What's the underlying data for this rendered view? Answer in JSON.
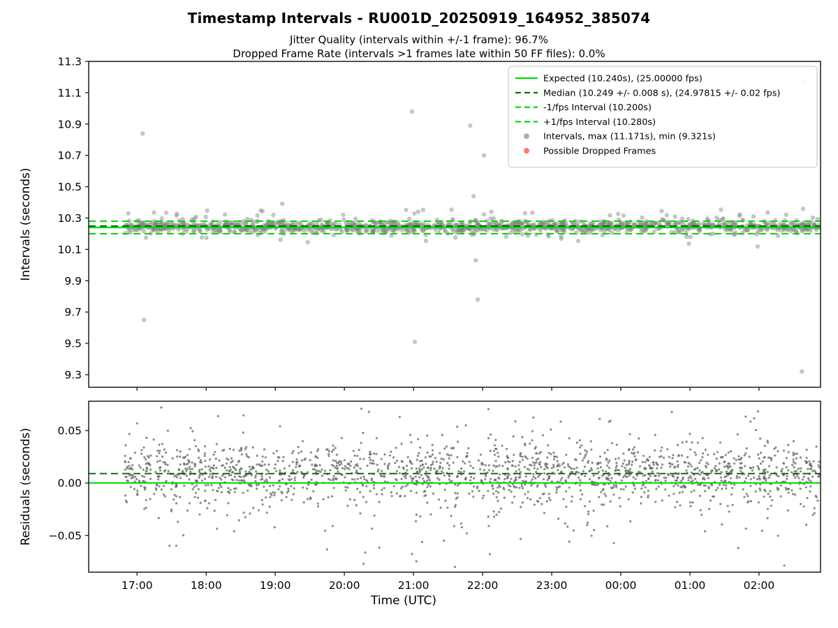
{
  "title": "Timestamp Intervals - RU001D_20250919_164952_385074",
  "subtitle_line1": "Jitter Quality (intervals within +/-1 frame): 96.7%",
  "subtitle_line2": "Dropped Frame Rate (intervals >1 frames late within 50 FF files): 0.0%",
  "chart_data": {
    "type": "scatter",
    "title": "Timestamp Intervals - RU001D_20250919_164952_385074",
    "x_axis": {
      "label": "Time (UTC)",
      "domain": [
        16.3,
        26.89
      ],
      "ticks": [
        17,
        18,
        19,
        20,
        21,
        22,
        23,
        24,
        25,
        26
      ],
      "tick_labels": [
        "17:00",
        "18:00",
        "19:00",
        "20:00",
        "21:00",
        "22:00",
        "23:00",
        "00:00",
        "01:00",
        "02:00"
      ]
    },
    "colors": {
      "expected_green": "#00DD00",
      "median_dark_green": "#006400",
      "interval_gray": "#808080",
      "residual_gray": "#666666",
      "dropped_red": "#FF3333",
      "spine": "#1a1a1a",
      "legend_border": "#cccccc"
    },
    "panels": [
      {
        "name": "intervals",
        "ylabel": "Intervals (seconds)",
        "ylim": [
          9.22,
          11.3
        ],
        "yticks": [
          9.3,
          9.5,
          9.7,
          9.9,
          10.1,
          10.3,
          10.5,
          10.7,
          10.9,
          11.1,
          11.3
        ],
        "ytick_labels": [
          "9.3",
          "9.5",
          "9.7",
          "9.9",
          "10.1",
          "10.3",
          "10.5",
          "10.7",
          "10.9",
          "11.1",
          "11.3"
        ],
        "show_x_labels": false,
        "lines": [
          {
            "name": "expected-line",
            "value": 10.24,
            "style": "solid",
            "color": "#00DD00",
            "width": 2.2
          },
          {
            "name": "median-line",
            "value": 10.249,
            "style": "dashed",
            "color": "#006400",
            "width": 2.0
          },
          {
            "name": "minus-1fps-line",
            "value": 10.2,
            "style": "dashed",
            "color": "#00DD00",
            "width": 2.0
          },
          {
            "name": "plus-1fps-line",
            "value": 10.28,
            "style": "dashed",
            "color": "#00DD00",
            "width": 2.0
          }
        ],
        "scatter": {
          "name": "interval-points",
          "color": "#808080",
          "opacity": 0.45,
          "radius": 3.2,
          "cluster": {
            "count": 1250,
            "t_range": [
              16.82,
              26.89
            ],
            "mean": 10.247,
            "std_core": 0.017,
            "std_wide": 0.05,
            "wide_fraction": 0.22,
            "clip": [
              10.11,
              10.4
            ],
            "seed": 42
          },
          "outliers": [
            [
              17.08,
              10.84
            ],
            [
              17.1,
              9.65
            ],
            [
              20.98,
              10.98
            ],
            [
              21.02,
              9.51
            ],
            [
              21.82,
              10.89
            ],
            [
              21.87,
              10.44
            ],
            [
              21.9,
              10.03
            ],
            [
              21.93,
              9.78
            ],
            [
              22.02,
              10.7
            ],
            [
              26.66,
              11.171
            ],
            [
              26.62,
              9.321
            ]
          ],
          "max_value": 11.171,
          "min_value": 9.321
        },
        "dropped_frames": {
          "name": "dropped-frame-points",
          "color": "#FF3333",
          "opacity": 0.55,
          "radius": 3.2,
          "points": []
        }
      },
      {
        "name": "residuals",
        "ylabel": "Residuals (seconds)",
        "ylim": [
          -0.085,
          0.078
        ],
        "yticks": [
          -0.05,
          0.0,
          0.05
        ],
        "ytick_labels": [
          "−0.05",
          "0.00",
          "0.05"
        ],
        "show_x_labels": true,
        "lines": [
          {
            "name": "median-residual-line",
            "value": 0.009,
            "style": "dashed",
            "color": "#006400",
            "width": 1.8
          },
          {
            "name": "zero-residual-line",
            "value": 0.0,
            "style": "solid",
            "color": "#00DD00",
            "width": 2.2
          }
        ],
        "scatter": {
          "name": "residual-points",
          "color": "#666666",
          "opacity": 0.75,
          "radius": 1.6,
          "cluster": {
            "count": 1900,
            "t_range": [
              16.82,
              26.89
            ],
            "mean": 0.009,
            "std_core": 0.012,
            "std_wide": 0.03,
            "wide_fraction": 0.28,
            "clip": [
              -0.079,
              0.071
            ],
            "seed": 7
          },
          "outliers": [
            [
              21.6,
              -0.08
            ],
            [
              17.35,
              0.072
            ],
            [
              20.8,
              0.063
            ]
          ]
        }
      }
    ],
    "legend": {
      "position": "top-right",
      "entries": [
        {
          "label": "Expected (10.240s), (25.00000 fps)",
          "type": "line",
          "style": "solid",
          "color": "#00DD00"
        },
        {
          "label": "Median (10.249 +/- 0.008 s), (24.97815 +/- 0.02 fps)",
          "type": "line",
          "style": "dashed",
          "color": "#006400"
        },
        {
          "label": "-1/fps Interval (10.200s)",
          "type": "line",
          "style": "dashed",
          "color": "#00DD00"
        },
        {
          "label": "+1/fps Interval (10.280s)",
          "type": "line",
          "style": "dashed",
          "color": "#00DD00"
        },
        {
          "label": "Intervals, max (11.171s), min (9.321s)",
          "type": "marker",
          "color": "#9a9a9a"
        },
        {
          "label": "Possible Dropped Frames",
          "type": "marker",
          "color": "#ff5555"
        }
      ]
    }
  }
}
